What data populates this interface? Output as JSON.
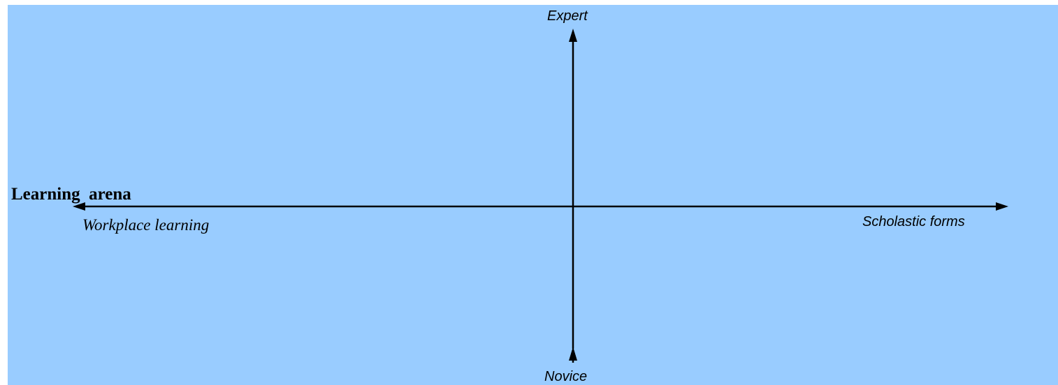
{
  "diagram": {
    "title": "Learning  arena",
    "top_label": "Expert",
    "bottom_label": "Novice",
    "left_label": "Workplace learning",
    "right_label": "Scholastic forms",
    "background_color": "#99ccff",
    "line_color": "#000000"
  }
}
